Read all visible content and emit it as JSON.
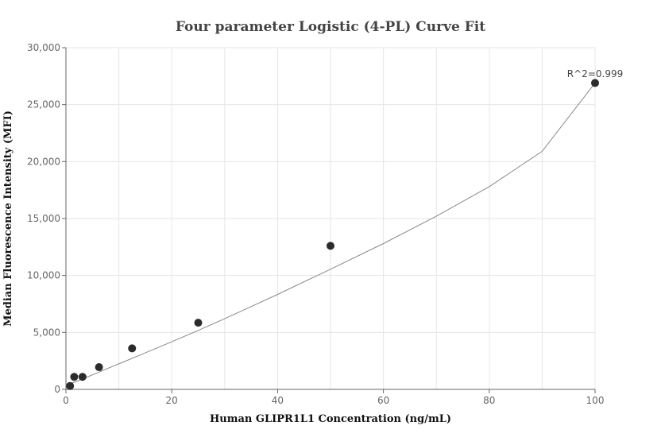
{
  "chart_data": {
    "type": "scatter",
    "title": "Four parameter Logistic (4-PL) Curve Fit",
    "xlabel": "Human GLIPR1L1 Concentration (ng/mL)",
    "ylabel": "Median Fluorescence Intensity (MFI)",
    "xlim": [
      0,
      100
    ],
    "ylim": [
      0,
      30000
    ],
    "x_ticks": [
      0,
      20,
      40,
      60,
      80,
      100
    ],
    "x_tick_labels": [
      "0",
      "20",
      "40",
      "60",
      "80",
      "100"
    ],
    "y_ticks": [
      0,
      5000,
      10000,
      15000,
      20000,
      25000,
      30000
    ],
    "y_tick_labels": [
      "0",
      "5,000",
      "10,000",
      "15,000",
      "20,000",
      "25,000",
      "30,000"
    ],
    "grid": true,
    "series": [
      {
        "x": [
          0.78,
          1.56,
          3.13,
          6.25,
          12.5,
          25,
          50,
          100
        ],
        "y": [
          300,
          1100,
          1100,
          1950,
          3600,
          5850,
          12600,
          26900
        ],
        "color": "#2b2b2b"
      }
    ],
    "fit_curve": {
      "x": [
        0,
        2,
        4,
        6,
        8,
        10,
        15,
        20,
        25,
        30,
        40,
        50,
        60,
        70,
        80,
        90,
        100
      ],
      "y": [
        350,
        700,
        1080,
        1470,
        1860,
        2240,
        3200,
        4180,
        5180,
        6200,
        8340,
        10550,
        12800,
        15200,
        17800,
        20900,
        26900
      ],
      "color": "#888888"
    },
    "annotation": "R^2=0.999"
  }
}
